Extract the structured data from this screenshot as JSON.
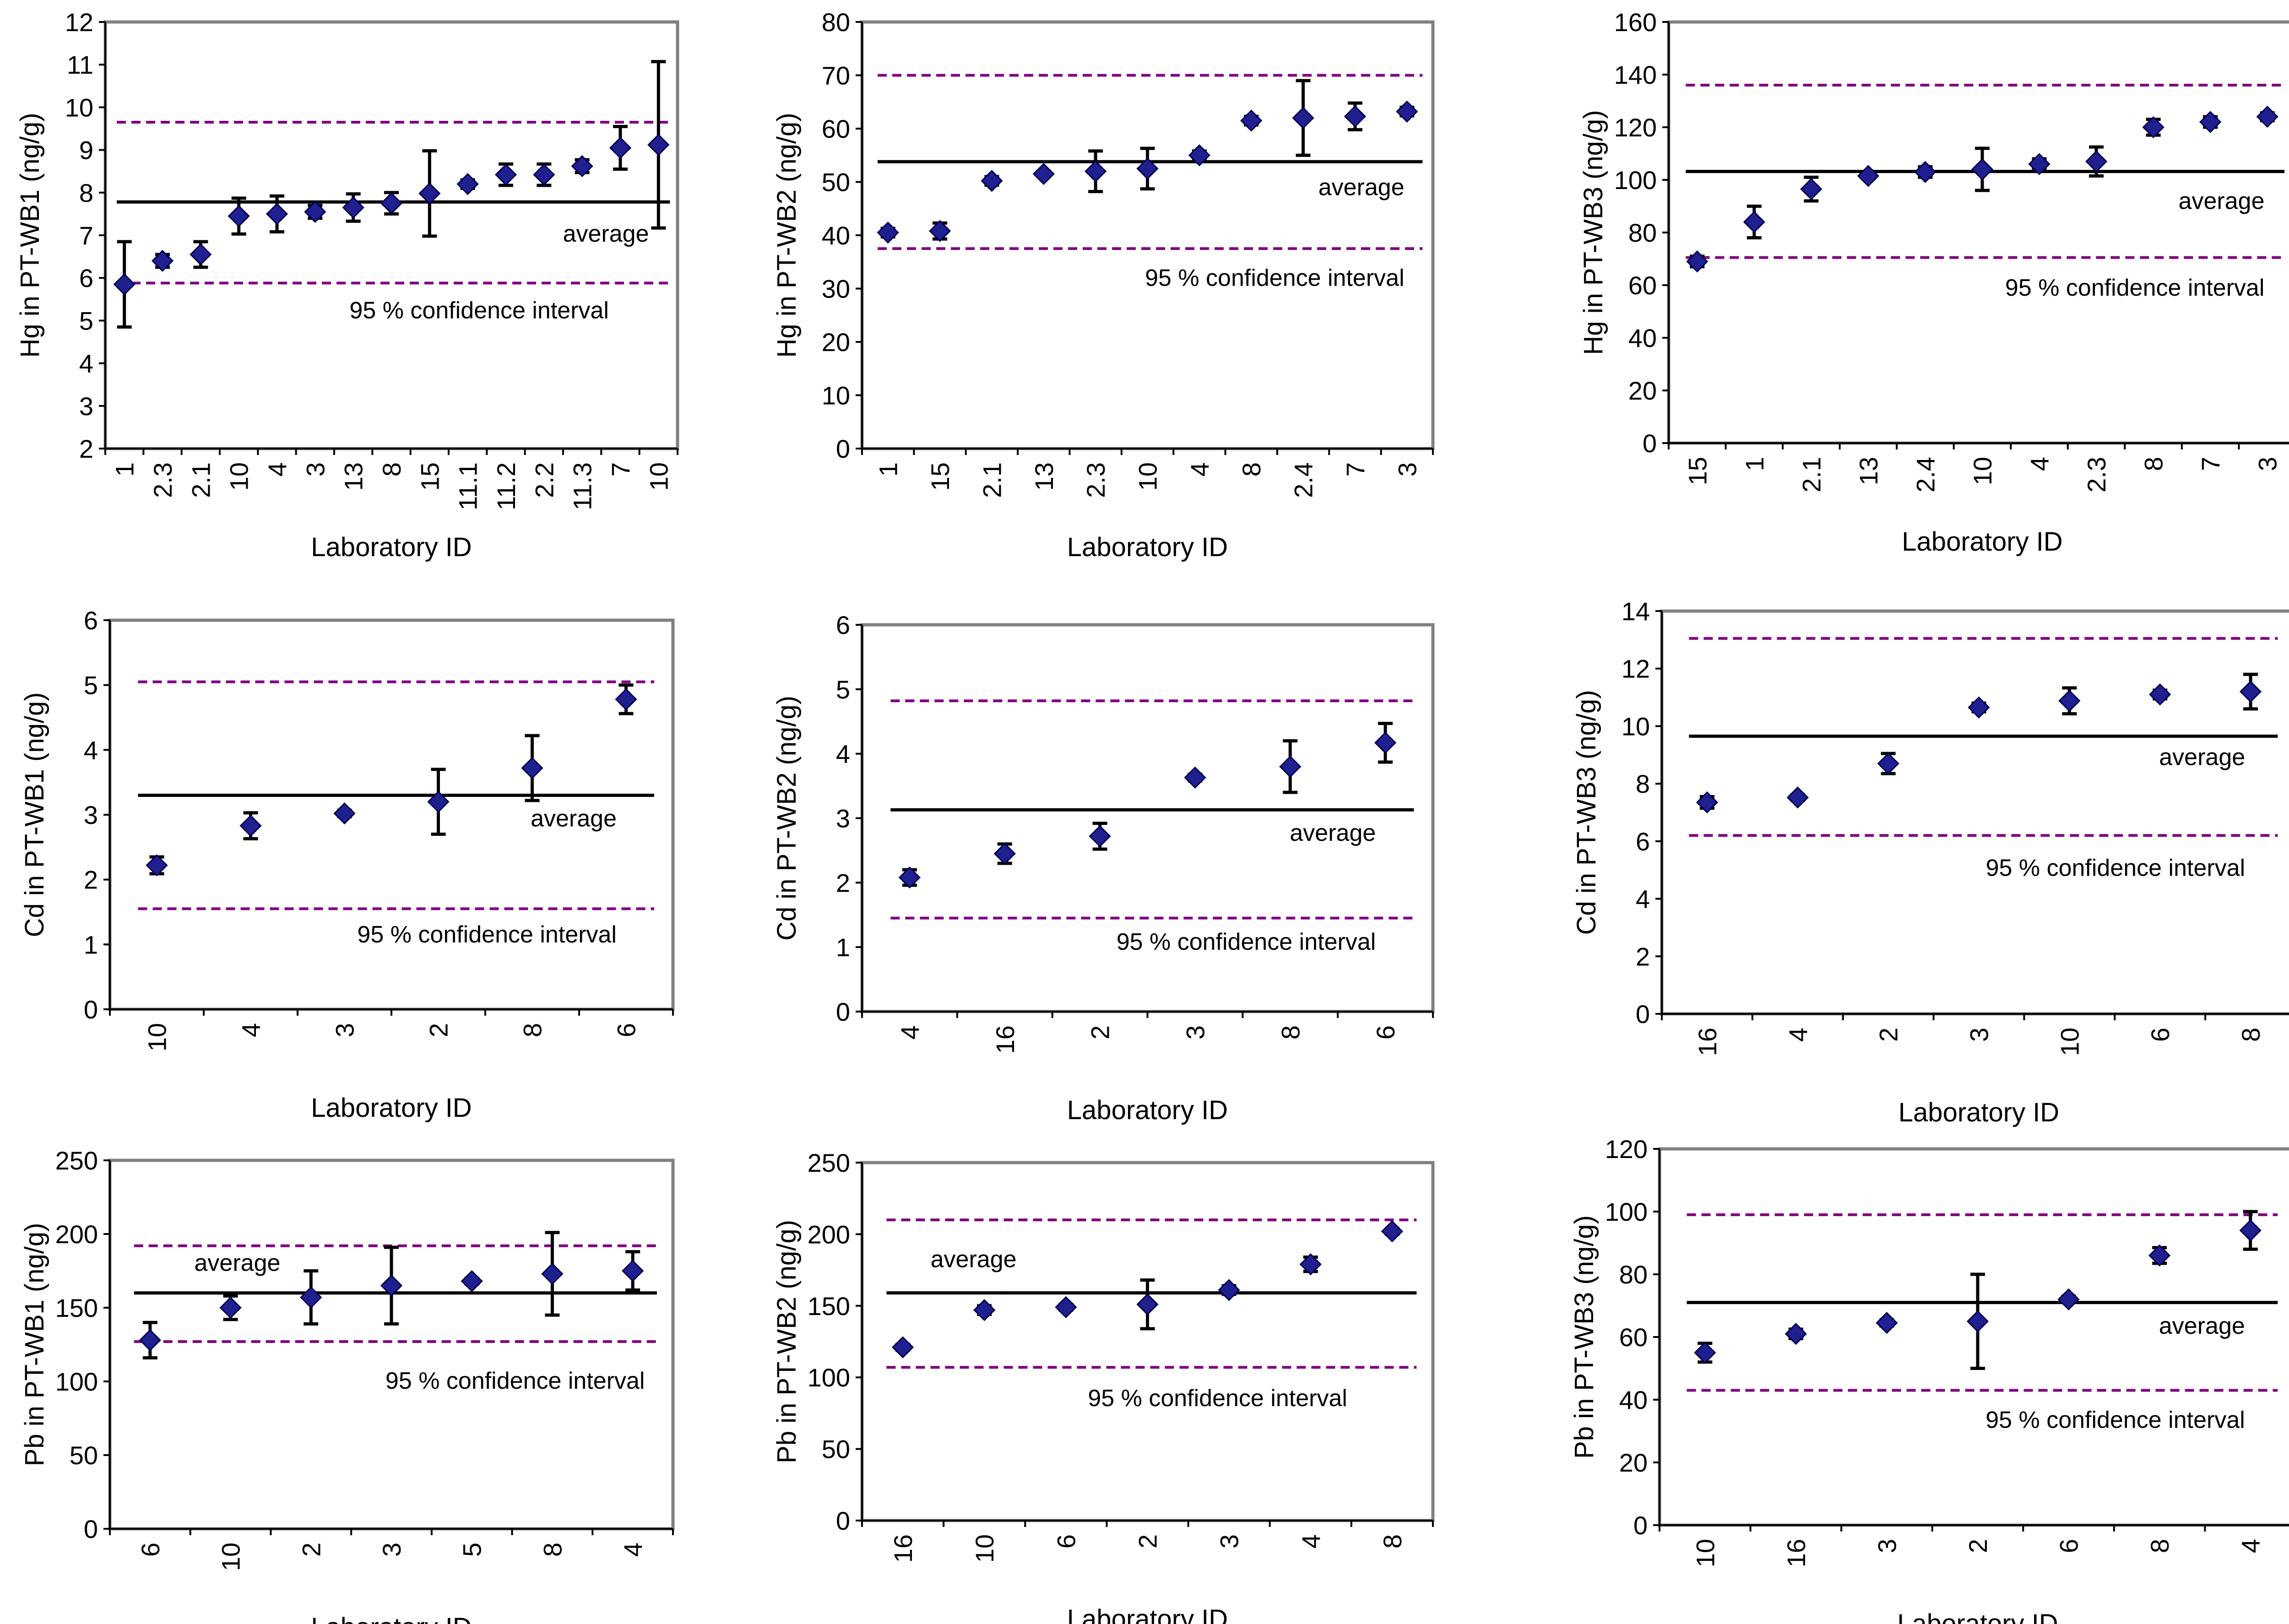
{
  "chart_data": [
    {
      "type": "scatter",
      "ylabel": "Hg in PT-WB1 (ng/g)",
      "xlabel": "Laboratory ID",
      "ylim": [
        2,
        12
      ],
      "ystep": 1,
      "categories": [
        "1",
        "2.3",
        "2.1",
        "10",
        "4",
        "3",
        "13",
        "8",
        "15",
        "11.1",
        "11.2",
        "2.2",
        "11.3",
        "7",
        "10"
      ],
      "values": [
        5.85,
        6.4,
        6.55,
        7.45,
        7.5,
        7.55,
        7.65,
        7.75,
        7.98,
        8.2,
        8.42,
        8.42,
        8.62,
        9.05,
        9.12
      ],
      "errors": [
        1.0,
        0.15,
        0.3,
        0.42,
        0.42,
        0.15,
        0.32,
        0.25,
        1.0,
        0.1,
        0.25,
        0.25,
        0.15,
        0.5,
        1.95
      ],
      "average": 7.78,
      "ci": [
        5.88,
        9.65
      ],
      "avg_label": "average",
      "ci_label": "95 % confidence interval"
    },
    {
      "type": "scatter",
      "ylabel": "Hg in PT-WB2 (ng/g)",
      "xlabel": "Laboratory ID",
      "ylim": [
        0,
        80
      ],
      "ystep": 10,
      "categories": [
        "1",
        "15",
        "2.1",
        "13",
        "2.3",
        "10",
        "4",
        "8",
        "2.4",
        "7",
        "3"
      ],
      "values": [
        40.5,
        40.8,
        50.2,
        51.5,
        52.0,
        52.5,
        55.0,
        61.5,
        62.0,
        62.3,
        63.2
      ],
      "errors": [
        0.8,
        1.5,
        0.8,
        0.5,
        3.8,
        3.8,
        0.8,
        0.8,
        7.0,
        2.5,
        0.8
      ],
      "average": 53.8,
      "ci": [
        37.5,
        70.0
      ],
      "avg_label": "average",
      "ci_label": "95 % confidence interval"
    },
    {
      "type": "scatter",
      "ylabel": "Hg in PT-WB3 (ng/g)",
      "xlabel": "Laboratory ID",
      "ylim": [
        0,
        160
      ],
      "ystep": 20,
      "categories": [
        "15",
        "1",
        "2.1",
        "13",
        "2.4",
        "10",
        "4",
        "2.3",
        "8",
        "7",
        "3"
      ],
      "values": [
        69,
        84,
        96.5,
        101.5,
        103,
        104,
        106,
        107,
        120,
        122,
        124
      ],
      "errors": [
        2,
        6,
        4.5,
        1,
        2,
        8,
        2,
        5.5,
        3,
        2,
        1.5
      ],
      "average": 103.2,
      "ci": [
        70.5,
        136.0
      ],
      "avg_label": "average",
      "ci_label": "95 % confidence interval"
    },
    {
      "type": "scatter",
      "ylabel": "Cd in PT-WB1 (ng/g)",
      "xlabel": "Laboratory ID",
      "ylim": [
        0,
        6
      ],
      "ystep": 1,
      "categories": [
        "10",
        "4",
        "3",
        "2",
        "8",
        "6"
      ],
      "values": [
        2.22,
        2.83,
        3.02,
        3.2,
        3.72,
        4.78
      ],
      "errors": [
        0.13,
        0.2,
        0.05,
        0.5,
        0.5,
        0.22
      ],
      "average": 3.3,
      "ci": [
        1.55,
        5.05
      ],
      "avg_label": "average",
      "ci_label": "95 % confidence interval"
    },
    {
      "type": "scatter",
      "ylabel": "Cd in PT-WB2 (ng/g)",
      "xlabel": "Laboratory ID",
      "ylim": [
        0,
        6
      ],
      "ystep": 1,
      "categories": [
        "4",
        "16",
        "2",
        "3",
        "8",
        "6"
      ],
      "values": [
        2.08,
        2.45,
        2.72,
        3.63,
        3.8,
        4.17
      ],
      "errors": [
        0.12,
        0.15,
        0.2,
        0.05,
        0.4,
        0.3
      ],
      "average": 3.13,
      "ci": [
        1.45,
        4.82
      ],
      "avg_label": "average",
      "ci_label": "95 % confidence interval"
    },
    {
      "type": "scatter",
      "ylabel": "Cd in PT-WB3 (ng/g)",
      "xlabel": "Laboratory ID",
      "ylim": [
        0,
        14
      ],
      "ystep": 2,
      "categories": [
        "16",
        "4",
        "2",
        "3",
        "10",
        "6",
        "8"
      ],
      "values": [
        7.35,
        7.52,
        8.7,
        10.65,
        10.88,
        11.1,
        11.2
      ],
      "errors": [
        0.2,
        0.1,
        0.35,
        0.15,
        0.45,
        0.15,
        0.6
      ],
      "average": 9.65,
      "ci": [
        6.2,
        13.05
      ],
      "avg_label": "average",
      "ci_label": "95 % confidence interval"
    },
    {
      "type": "scatter",
      "ylabel": "Pb in PT-WB1 (ng/g)",
      "xlabel": "Laboratory ID",
      "ylim": [
        0,
        250
      ],
      "ystep": 50,
      "categories": [
        "6",
        "10",
        "2",
        "3",
        "5",
        "8",
        "4"
      ],
      "values": [
        128,
        150,
        157,
        165,
        168,
        173,
        175
      ],
      "errors": [
        12,
        8,
        18,
        26,
        2,
        28,
        13
      ],
      "average": 160,
      "ci": [
        127,
        192
      ],
      "avg_label": "average",
      "ci_label": "95 % confidence interval"
    },
    {
      "type": "scatter",
      "ylabel": "Pb in PT-WB2 (ng/g)",
      "xlabel": "Laboratory ID",
      "ylim": [
        0,
        250
      ],
      "ystep": 50,
      "categories": [
        "16",
        "10",
        "6",
        "2",
        "3",
        "4",
        "8"
      ],
      "values": [
        121,
        147,
        149,
        151,
        161,
        179,
        202
      ],
      "errors": [
        2,
        3,
        2,
        17,
        3,
        5,
        2
      ],
      "average": 159,
      "ci": [
        107,
        210
      ],
      "avg_label": "average",
      "ci_label": "95 % confidence interval"
    },
    {
      "type": "scatter",
      "ylabel": "Pb in PT-WB3 (ng/g)",
      "xlabel": "Laboratory ID",
      "ylim": [
        0,
        120
      ],
      "ystep": 20,
      "categories": [
        "10",
        "16",
        "3",
        "2",
        "6",
        "8",
        "4"
      ],
      "values": [
        55,
        61,
        64.5,
        65,
        72,
        86,
        94
      ],
      "errors": [
        3,
        1.5,
        1,
        15,
        1,
        2.5,
        6
      ],
      "average": 71,
      "ci": [
        43,
        99
      ],
      "avg_label": "average",
      "ci_label": "95 % confidence interval"
    }
  ]
}
